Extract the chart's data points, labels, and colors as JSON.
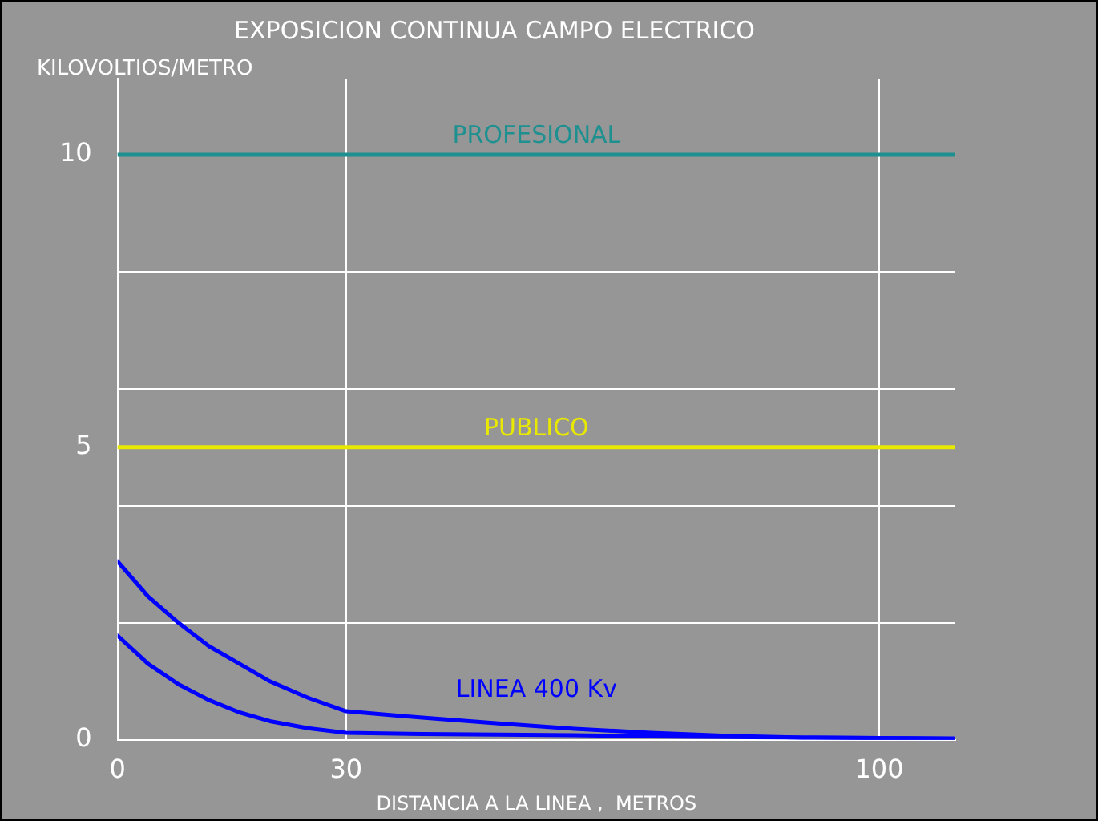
{
  "chart_data": {
    "type": "line",
    "title": "EXPOSICION CONTINUA CAMPO ELECTRICO",
    "xlabel": "DISTANCIA A LA LINEA ,  METROS",
    "ylabel": "KILOVOLTIOS/METRO",
    "series": [
      {
        "color": "#0000ff",
        "x": [
          0,
          4,
          8,
          12,
          16,
          20,
          25,
          30,
          40,
          50,
          60,
          70,
          80,
          90,
          100,
          110
        ],
        "values": [
          3.05,
          2.45,
          2.0,
          1.6,
          1.3,
          1.0,
          0.72,
          0.49,
          0.38,
          0.28,
          0.19,
          0.12,
          0.07,
          0.04,
          0.03,
          0.02
        ]
      },
      {
        "color": "#0000ff",
        "x": [
          0,
          4,
          8,
          12,
          16,
          20,
          25,
          30,
          40,
          50,
          60,
          70,
          80,
          90,
          100,
          110
        ],
        "values": [
          1.78,
          1.3,
          0.95,
          0.68,
          0.47,
          0.32,
          0.2,
          0.12,
          0.1,
          0.09,
          0.08,
          0.06,
          0.05,
          0.04,
          0.03,
          0.02
        ]
      }
    ],
    "xlim": [
      0,
      110
    ],
    "xticks": [
      0,
      30,
      100
    ],
    "ylim": [
      0,
      11.3
    ],
    "yticks": [
      0,
      {
        "value": 2,
        "label": null
      },
      {
        "value": 4,
        "label": null
      },
      5,
      {
        "value": 6,
        "label": null
      },
      {
        "value": 8,
        "label": null
      },
      10
    ],
    "grid": true,
    "legend": false,
    "marker": "none",
    "line_style": "solid",
    "ref_lines": [
      {
        "axis": "y",
        "value": 10,
        "label": "PROFESIONAL",
        "color": "#1f9090"
      },
      {
        "axis": "y",
        "value": 5,
        "label": "PUBLICO",
        "color": "#e8e800"
      }
    ],
    "annotations": [
      "LINEA 400 Kv"
    ]
  }
}
